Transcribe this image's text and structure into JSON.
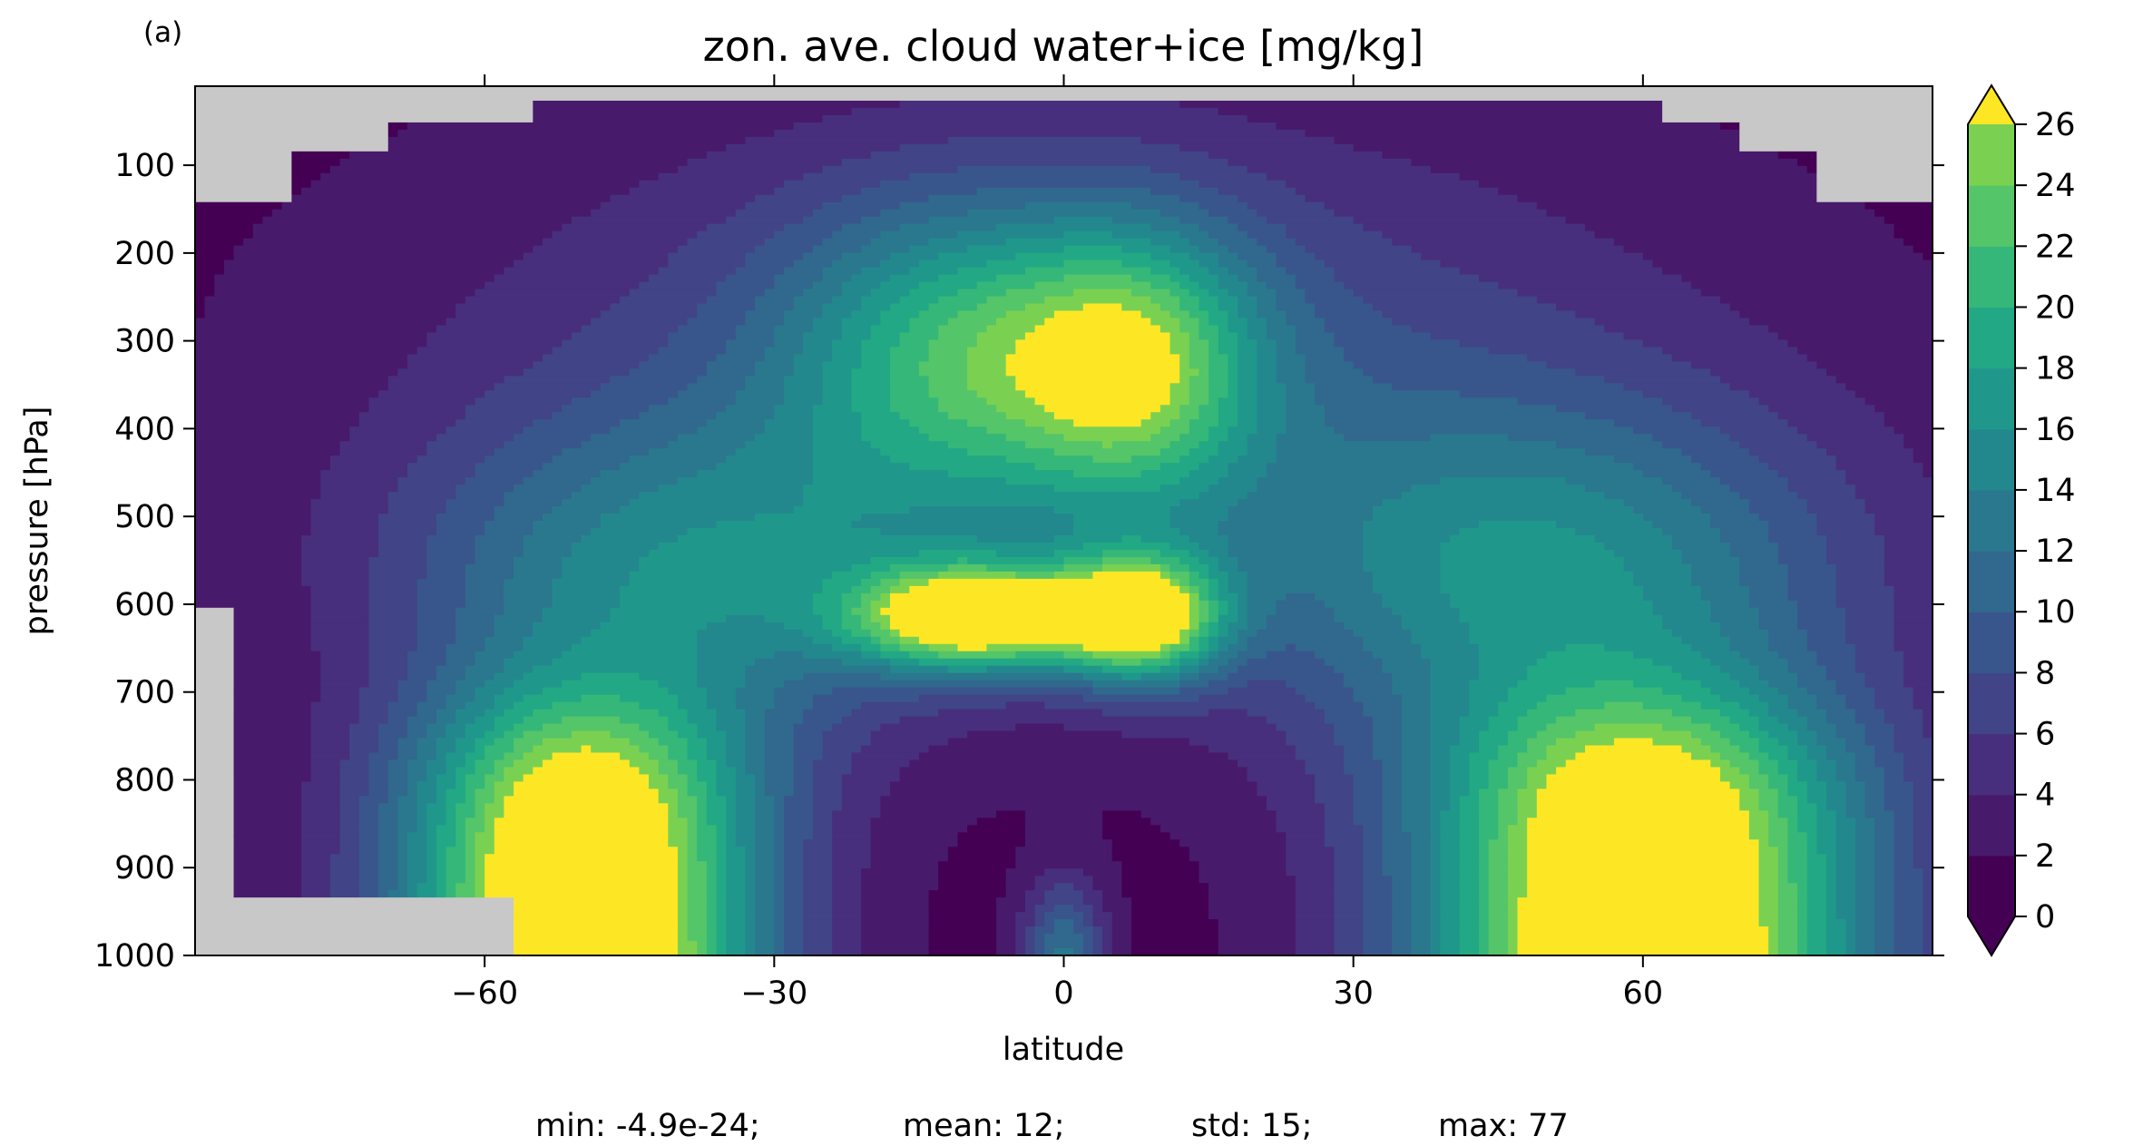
{
  "panel_label": "(a)",
  "chart_data": {
    "type": "heatmap",
    "title": "zon. ave. cloud water+ice [mg/kg]",
    "xlabel": "latitude",
    "ylabel": "pressure [hPa]",
    "xlim": [
      -90,
      90
    ],
    "ylim": [
      1000,
      10
    ],
    "y_inverted": true,
    "x_ticks": [
      -60,
      -30,
      0,
      30,
      60
    ],
    "x_tick_labels": [
      "−60",
      "−30",
      "0",
      "30",
      "60"
    ],
    "y_ticks": [
      100,
      200,
      300,
      400,
      500,
      600,
      700,
      800,
      900,
      1000
    ],
    "y_tick_labels": [
      "100",
      "200",
      "300",
      "400",
      "500",
      "600",
      "700",
      "800",
      "900",
      "1000"
    ],
    "missing_color": "#c8c8c8",
    "colorbar": {
      "levels": [
        0,
        2,
        4,
        6,
        8,
        10,
        12,
        14,
        16,
        18,
        20,
        22,
        24,
        26
      ],
      "tick_labels": [
        "0",
        "2",
        "4",
        "6",
        "8",
        "10",
        "12",
        "14",
        "16",
        "18",
        "20",
        "22",
        "24",
        "26"
      ],
      "extend": "both",
      "colors": [
        "#440154",
        "#481a6c",
        "#472f7d",
        "#414487",
        "#39568c",
        "#31688e",
        "#2a788e",
        "#23888e",
        "#1f988b",
        "#22a884",
        "#35b779",
        "#54c568",
        "#7ad151",
        "#a5db36",
        "#fde725"
      ],
      "under_color": "#440154",
      "over_color": "#fde725"
    },
    "grid": false,
    "stats": {
      "min": "min: -4.9e-24;",
      "mean": "mean: 12;",
      "std": "std: 15;",
      "max": "max: 77"
    }
  }
}
